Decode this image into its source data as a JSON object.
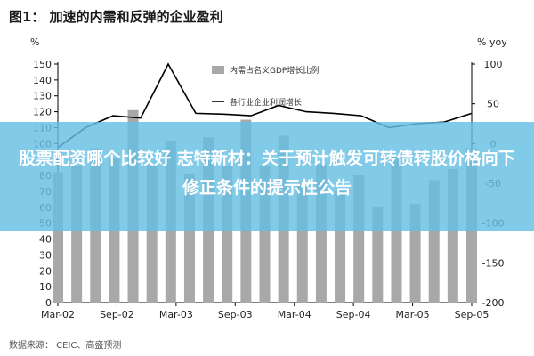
{
  "page": {
    "title": "图1： 加速的内需和反弹的企业盈利",
    "source": "数据来源： CEIC、高盛预测",
    "overlay_headline": "股票配资哪个比较好 志特新材：关于预计触发可转债转股价格向下修正条件的提示性公告",
    "colors": {
      "bars": "#a8a8a8",
      "line": "#000000",
      "banner": "#66bfe3",
      "banner_text": "#ffffff"
    }
  },
  "chart_data": {
    "type": "bar",
    "x_tick_labels": [
      "Mar-02",
      "Sep-02",
      "Mar-03",
      "Sep-03",
      "Mar-04",
      "Sep-04",
      "Mar-05",
      "Sep-05"
    ],
    "left_axis": {
      "unit": "%",
      "ylim": [
        0,
        150
      ],
      "ticks": [
        0,
        10,
        20,
        30,
        40,
        50,
        60,
        70,
        80,
        90,
        100,
        110,
        120,
        130,
        140,
        150
      ]
    },
    "right_axis": {
      "unit": "% yoy",
      "ylim": [
        -200,
        100
      ],
      "ticks": [
        -200,
        -150,
        -100,
        -50,
        0,
        50,
        100
      ]
    },
    "grid": false,
    "legend_position": "top",
    "series": [
      {
        "name": "内需占名义GDP增长比例",
        "type": "bar",
        "axis": "left",
        "values": [
          82,
          86,
          97,
          91,
          121,
          86,
          102,
          81,
          104,
          86,
          115,
          86,
          105,
          75,
          87,
          70,
          80,
          60,
          92,
          62,
          77,
          84,
          97
        ]
      },
      {
        "name": "各行业企业利润增长",
        "type": "line",
        "axis": "right",
        "values": [
          -5,
          20,
          35,
          32,
          100,
          38,
          37,
          35,
          48,
          40,
          38,
          35,
          20,
          25,
          27,
          38
        ]
      }
    ]
  }
}
